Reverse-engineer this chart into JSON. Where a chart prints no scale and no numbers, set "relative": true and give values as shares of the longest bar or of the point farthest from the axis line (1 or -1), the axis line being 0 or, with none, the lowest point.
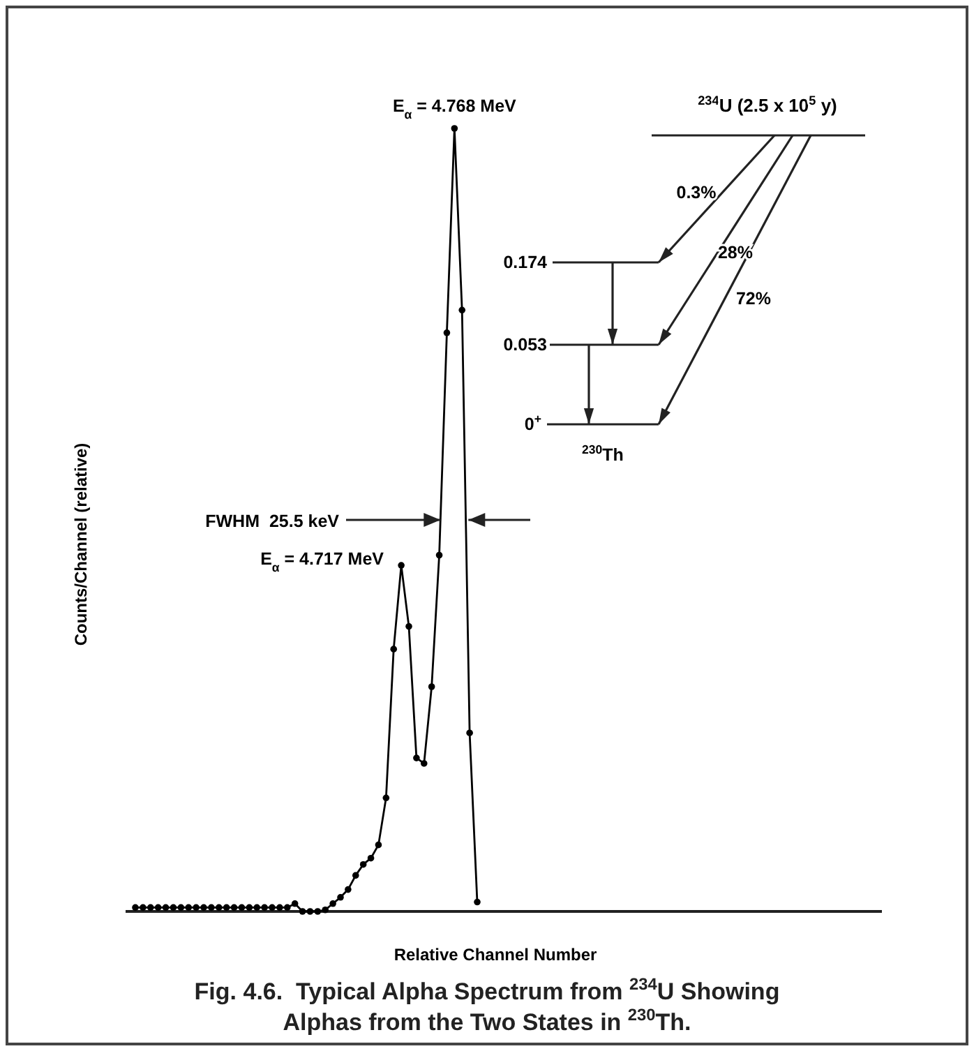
{
  "chart_data": {
    "type": "line",
    "title": "Fig. 4.6.  Typical Alpha Spectrum from $^{234}$U Showing Alphas from the Two States in $^{230}$Th.",
    "xlabel": "Relative Channel Number",
    "ylabel": "Counts/Channel (relative)",
    "annotations": [
      "E$_{α}$ = 4.768 MeV",
      "FWHM  25.5 keV",
      "E$_{α}$ = 4.717 MeV",
      "$^{234}$U (2.5 x 10$^{5}$ y)",
      "0.3%",
      "28%",
      "72%",
      "0.174",
      "0.053",
      "0$^{+}$",
      "$^{230}$Th"
    ],
    "categories": [
      null,
      null,
      null,
      null,
      null,
      null,
      null,
      null,
      null,
      null,
      null,
      null,
      null,
      null,
      null,
      null,
      null,
      null,
      null,
      null,
      null,
      null,
      null,
      null,
      null,
      null,
      null,
      null,
      null,
      null,
      null,
      null,
      null,
      null,
      null,
      null,
      null,
      null,
      null,
      null,
      null,
      null,
      null,
      null,
      null,
      null
    ],
    "values": [
      0.005,
      0.005,
      0.005,
      0.005,
      0.005,
      0.005,
      0.005,
      0.005,
      0.005,
      0.005,
      0.005,
      0.005,
      0.005,
      0.005,
      0.005,
      0.005,
      0.005,
      0.005,
      0.005,
      0.005,
      0.005,
      0.01,
      0.0,
      0.0,
      0.0,
      0.002,
      0.01,
      0.018,
      0.028,
      0.046,
      0.06,
      0.068,
      0.085,
      0.145,
      0.335,
      0.442,
      0.364,
      0.196,
      0.189,
      0.287,
      0.455,
      0.739,
      1,
      0.768,
      0.228,
      0.012
    ],
    "color": "#000000",
    "relative": true,
    "marker": "circle",
    "line_style": "solid"
  }
}
